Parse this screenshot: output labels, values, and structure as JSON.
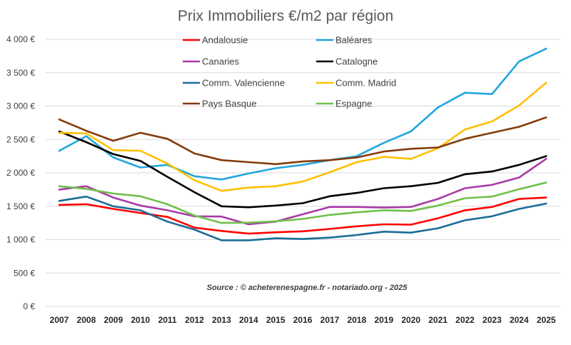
{
  "chart_data": {
    "type": "line",
    "title": "Prix Immobiliers €/m2 par région",
    "xlabel": "",
    "ylabel": "",
    "ylim": [
      0,
      4000
    ],
    "y_ticks": [
      "0 €",
      "500 €",
      "1 000 €",
      "1 500 €",
      "2 000 €",
      "2 500 €",
      "3 000 €",
      "3 500 €",
      "4 000 €"
    ],
    "y_tick_values": [
      0,
      500,
      1000,
      1500,
      2000,
      2500,
      3000,
      3500,
      4000
    ],
    "grid": true,
    "legend_position": "top",
    "annotation": "Source : © acheterenespagne.fr - notariado.org - 2025",
    "x": [
      "2007",
      "2008",
      "2009",
      "2010",
      "2011",
      "2012",
      "2013",
      "2014",
      "2015",
      "2016",
      "2017",
      "2018",
      "2019",
      "2020",
      "2021",
      "2022",
      "2023",
      "2024",
      "2025"
    ],
    "series": [
      {
        "name": "Andalousie",
        "color": "#ff0000",
        "values": [
          1520,
          1530,
          1460,
          1400,
          1340,
          1180,
          1130,
          1090,
          1110,
          1125,
          1160,
          1200,
          1230,
          1225,
          1320,
          1440,
          1490,
          1610,
          1630
        ]
      },
      {
        "name": "Baléares",
        "color": "#22a6dd",
        "values": [
          2330,
          2550,
          2230,
          2080,
          2120,
          1950,
          1900,
          1990,
          2070,
          2120,
          2190,
          2250,
          2450,
          2620,
          2980,
          3200,
          3180,
          3670,
          3860
        ]
      },
      {
        "name": "Canaries",
        "color": "#a83ba8",
        "values": [
          1750,
          1800,
          1630,
          1510,
          1440,
          1350,
          1345,
          1230,
          1270,
          1380,
          1490,
          1490,
          1480,
          1490,
          1610,
          1770,
          1820,
          1930,
          2210
        ]
      },
      {
        "name": "Catalogne",
        "color": "#000000",
        "values": [
          2620,
          2460,
          2280,
          2180,
          1940,
          1710,
          1500,
          1485,
          1510,
          1545,
          1650,
          1700,
          1770,
          1800,
          1850,
          1980,
          2020,
          2120,
          2250
        ]
      },
      {
        "name": "Comm. Valencienne",
        "color": "#1b6d96",
        "values": [
          1580,
          1645,
          1500,
          1440,
          1270,
          1150,
          990,
          990,
          1020,
          1010,
          1030,
          1070,
          1120,
          1105,
          1170,
          1290,
          1350,
          1460,
          1540
        ]
      },
      {
        "name": "Comm. Madrid",
        "color": "#ffc000",
        "values": [
          2600,
          2590,
          2340,
          2330,
          2140,
          1890,
          1730,
          1780,
          1800,
          1870,
          2010,
          2160,
          2240,
          2210,
          2370,
          2650,
          2770,
          3010,
          3350
        ]
      },
      {
        "name": "Pays Basque",
        "color": "#843c0c",
        "values": [
          2800,
          2630,
          2480,
          2600,
          2510,
          2290,
          2190,
          2160,
          2130,
          2170,
          2190,
          2230,
          2320,
          2360,
          2380,
          2510,
          2600,
          2690,
          2830
        ]
      },
      {
        "name": "Espagne",
        "color": "#70c04a",
        "values": [
          1800,
          1760,
          1690,
          1650,
          1530,
          1360,
          1250,
          1255,
          1275,
          1310,
          1370,
          1410,
          1440,
          1430,
          1510,
          1620,
          1645,
          1755,
          1855
        ]
      }
    ]
  }
}
